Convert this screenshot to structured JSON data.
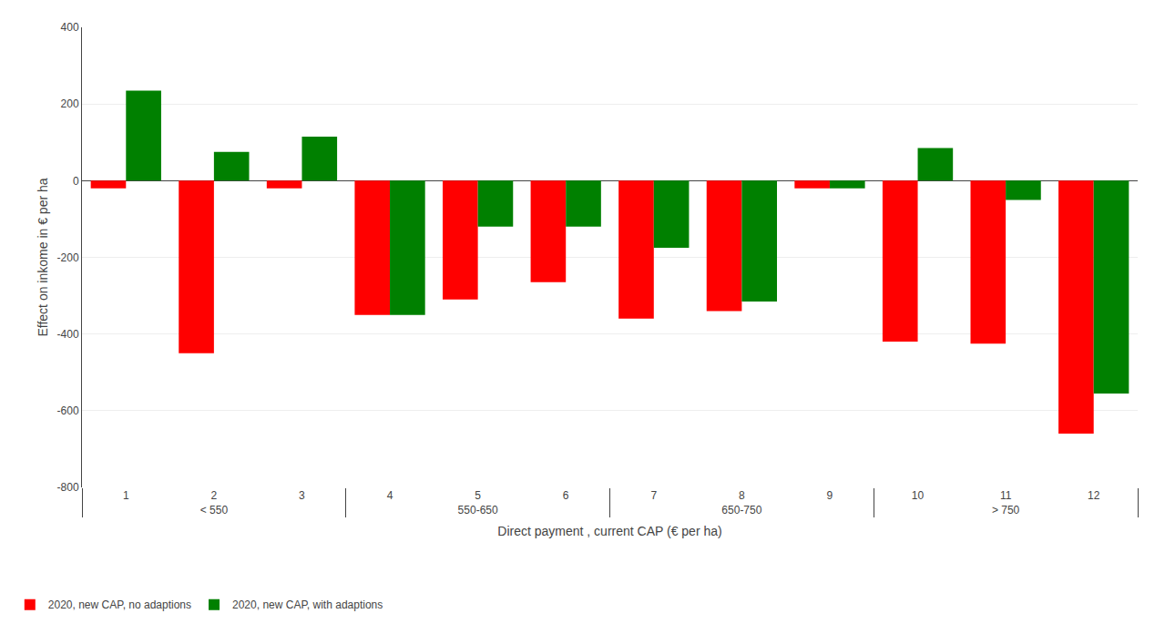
{
  "chart_data": {
    "type": "bar",
    "categories": [
      1,
      2,
      3,
      4,
      5,
      6,
      7,
      8,
      9,
      10,
      11,
      12
    ],
    "series": [
      {
        "name": "2020, new CAP, no adaptions",
        "color": "#FF0000",
        "values": [
          -20,
          -450,
          -20,
          -350,
          -310,
          -265,
          -360,
          -340,
          -20,
          -420,
          -425,
          -660
        ]
      },
      {
        "name": "2020, new CAP, with adaptions",
        "color": "#008000",
        "values": [
          235,
          75,
          115,
          -350,
          -120,
          -120,
          -175,
          -315,
          -20,
          85,
          -50,
          -555
        ]
      }
    ],
    "xlabel": "Direct payment , current CAP (€ per ha)",
    "ylabel": "Effect on inkome in € per ha",
    "annotations": [
      "< 550",
      "550-650",
      "650-750",
      "> 750"
    ],
    "ylim": [
      -800,
      400
    ],
    "yticks": [
      -800,
      -600,
      -400,
      -200,
      0,
      200,
      400
    ],
    "grid": true,
    "legend": "lower left"
  }
}
